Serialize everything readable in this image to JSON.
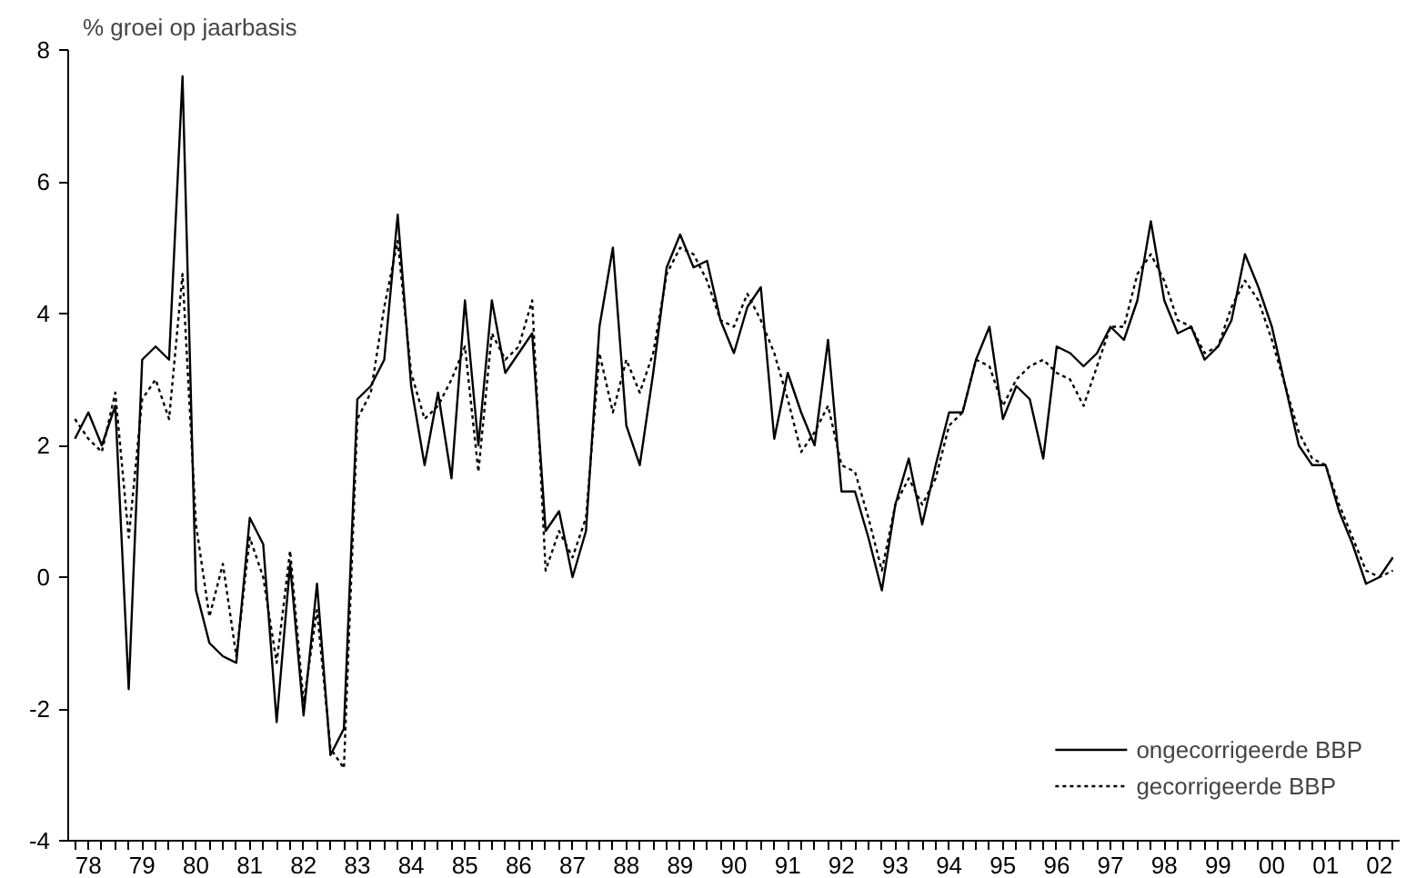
{
  "chart_data": {
    "type": "line",
    "ylabel": "% groei op jaarbasis",
    "categories": [
      null,
      "78",
      null,
      null,
      null,
      "79",
      null,
      null,
      null,
      "80",
      null,
      null,
      null,
      "81",
      null,
      null,
      null,
      "82",
      null,
      null,
      null,
      "83",
      null,
      null,
      null,
      "84",
      null,
      null,
      null,
      "85",
      null,
      null,
      null,
      "86",
      null,
      null,
      null,
      "87",
      null,
      null,
      null,
      "88",
      null,
      null,
      null,
      "89",
      null,
      null,
      null,
      "90",
      null,
      null,
      null,
      "91",
      null,
      null,
      null,
      "92",
      null,
      null,
      null,
      "93",
      null,
      null,
      null,
      "94",
      null,
      null,
      null,
      "95",
      null,
      null,
      null,
      "96",
      null,
      null,
      null,
      "97",
      null,
      null,
      null,
      "98",
      null,
      null,
      null,
      "99",
      null,
      null,
      null,
      "00",
      null,
      null,
      null,
      "01",
      null,
      null,
      null,
      "02",
      null
    ],
    "series": [
      {
        "name": "ongecorrigeerde BBP",
        "color": "#000000",
        "line_style": "solid",
        "values": [
          2.1,
          2.5,
          2.0,
          2.6,
          -1.7,
          3.3,
          3.5,
          3.3,
          7.6,
          -0.2,
          -1.0,
          -1.2,
          -1.3,
          0.9,
          0.5,
          -2.2,
          0.2,
          -2.1,
          -0.1,
          -2.7,
          -2.3,
          2.7,
          2.9,
          3.3,
          5.5,
          2.9,
          1.7,
          2.8,
          1.5,
          4.2,
          2.0,
          4.2,
          3.1,
          3.4,
          3.7,
          0.7,
          1.0,
          0.0,
          0.7,
          3.8,
          5.0,
          2.3,
          1.7,
          3.1,
          4.7,
          5.2,
          4.7,
          4.8,
          3.9,
          3.4,
          4.1,
          4.4,
          2.1,
          3.1,
          2.5,
          2.0,
          3.6,
          1.3,
          1.3,
          0.6,
          -0.2,
          1.1,
          1.8,
          0.8,
          1.7,
          2.5,
          2.5,
          3.3,
          3.8,
          2.4,
          2.9,
          2.7,
          1.8,
          3.5,
          3.4,
          3.2,
          3.4,
          3.8,
          3.6,
          4.2,
          5.4,
          4.2,
          3.7,
          3.8,
          3.3,
          3.5,
          3.9,
          4.9,
          4.4,
          3.8,
          2.9,
          2.0,
          1.7,
          1.7,
          1.0,
          0.5,
          -0.1,
          0.0,
          0.3
        ]
      },
      {
        "name": "gecorrigeerde BBP",
        "color": "#000000",
        "line_style": "dotted",
        "values": [
          2.4,
          2.1,
          1.9,
          2.8,
          0.6,
          2.7,
          3.0,
          2.4,
          4.6,
          0.8,
          -0.6,
          0.2,
          -1.2,
          0.6,
          0.0,
          -1.3,
          0.4,
          -1.9,
          -0.5,
          -2.6,
          -2.9,
          2.4,
          2.8,
          4.1,
          5.1,
          3.1,
          2.4,
          2.6,
          3.0,
          3.5,
          1.6,
          3.7,
          3.3,
          3.5,
          4.2,
          0.1,
          0.7,
          0.3,
          0.9,
          3.4,
          2.5,
          3.3,
          2.8,
          3.4,
          4.6,
          5.0,
          4.9,
          4.5,
          3.9,
          3.8,
          4.3,
          3.9,
          3.4,
          2.7,
          1.9,
          2.2,
          2.6,
          1.7,
          1.6,
          0.9,
          0.1,
          1.1,
          1.5,
          1.1,
          1.5,
          2.3,
          2.5,
          3.3,
          3.2,
          2.6,
          3.0,
          3.2,
          3.3,
          3.1,
          3.0,
          2.6,
          3.2,
          3.8,
          3.8,
          4.6,
          4.9,
          4.5,
          3.9,
          3.8,
          3.4,
          3.5,
          4.1,
          4.5,
          4.2,
          3.6,
          2.9,
          2.2,
          1.8,
          1.7,
          1.1,
          0.6,
          0.1,
          0.0,
          0.1
        ]
      }
    ],
    "ylim": [
      -4,
      8
    ],
    "yticks": [
      -4,
      -2,
      0,
      2,
      4,
      6,
      8
    ],
    "grid": false,
    "legend": "bottom right"
  }
}
